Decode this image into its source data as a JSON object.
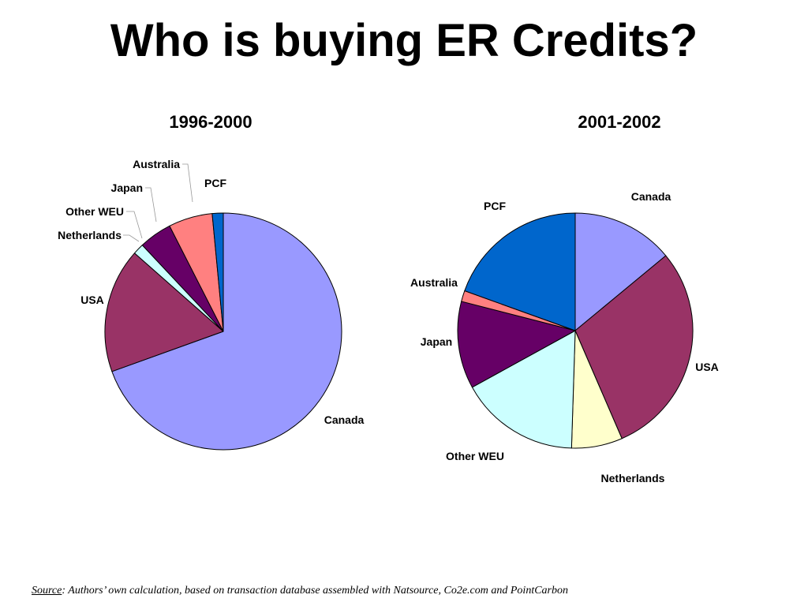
{
  "slide": {
    "title": "Who is buying ER Credits?"
  },
  "source": {
    "label": "Source",
    "text": ": Authors’ own calculation, based on transaction database assembled with Natsource, Co2e.com and PointCarbon"
  },
  "chart_data": [
    {
      "type": "pie",
      "title": "1996-2000",
      "start_angle_deg": 0,
      "direction": "clockwise",
      "slices": [
        {
          "label": "Canada",
          "value": 69.5,
          "color": "#9999ff"
        },
        {
          "label": "USA",
          "value": 17.0,
          "color": "#993366"
        },
        {
          "label": "Netherlands",
          "value": 0.0,
          "color": "#ffffcc"
        },
        {
          "label": "Other WEU",
          "value": 1.5,
          "color": "#ccffff"
        },
        {
          "label": "Japan",
          "value": 4.5,
          "color": "#660066"
        },
        {
          "label": "Australia",
          "value": 6.0,
          "color": "#ff8080"
        },
        {
          "label": "PCF",
          "value": 1.5,
          "color": "#0066cc"
        }
      ]
    },
    {
      "type": "pie",
      "title": "2001-2002",
      "start_angle_deg": 0,
      "direction": "clockwise",
      "slices": [
        {
          "label": "Canada",
          "value": 14.0,
          "color": "#9999ff"
        },
        {
          "label": "USA",
          "value": 29.5,
          "color": "#993366"
        },
        {
          "label": "Netherlands",
          "value": 7.0,
          "color": "#ffffcc"
        },
        {
          "label": "Other WEU",
          "value": 16.5,
          "color": "#ccffff"
        },
        {
          "label": "Japan",
          "value": 12.0,
          "color": "#660066"
        },
        {
          "label": "Australia",
          "value": 1.5,
          "color": "#ff8080"
        },
        {
          "label": "PCF",
          "value": 19.5,
          "color": "#0066cc"
        }
      ]
    }
  ]
}
